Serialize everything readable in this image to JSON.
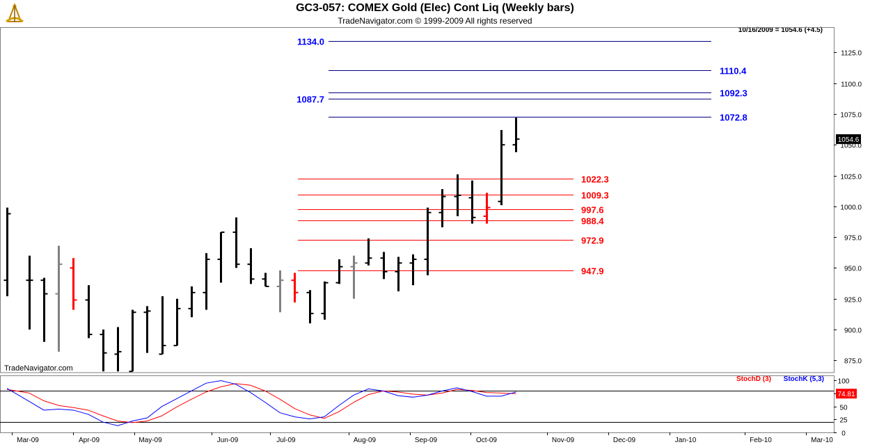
{
  "header": {
    "title": "GC3-057:  COMEX Gold (Elec) Cont Liq  (Weekly bars)",
    "copyright": "TradeNavigator.com © 1999-2009 All rights reserved",
    "last_value": "10/16/2009 = 1054.6 (+4.5)",
    "brand": "TradeNavigator.com"
  },
  "chart_data": [
    {
      "type": "bar",
      "subtype": "ohlc",
      "title": "GC3-057:  COMEX Gold (Elec) Cont Liq  (Weekly bars)",
      "ylim": [
        865,
        1145
      ],
      "y_ticks": [
        "875.0",
        "900.0",
        "925.0",
        "950.0",
        "975.0",
        "1000.0",
        "1025.0",
        "1050.0",
        "1075.0",
        "1100.0",
        "1125.0"
      ],
      "x_ticks": [
        "Mar-09",
        "Apr-09",
        "May-09",
        "Jun-09",
        "Jul-09",
        "Aug-09",
        "Sep-09",
        "Oct-09",
        "Nov-09",
        "Dec-09",
        "Jan-10",
        "Feb-10",
        "Mar-10"
      ],
      "last_price_label": "1054.6",
      "colors": {
        "up": "#000000",
        "down": "#ff0000",
        "neutral": "#808080",
        "blue_line": "#000080",
        "red_line": "#ff0000"
      },
      "bars": [
        {
          "w": 0,
          "o": 940,
          "h": 999,
          "l": 927,
          "c": 994,
          "color": "#000000"
        },
        {
          "w": 3,
          "o": 940,
          "h": 960,
          "l": 900,
          "c": 940,
          "color": "#000000"
        },
        {
          "w": 5,
          "o": 940,
          "h": 942,
          "l": 890,
          "c": 929,
          "color": "#000000"
        },
        {
          "w": 7,
          "o": 929,
          "h": 968,
          "l": 882,
          "c": 953,
          "color": "#808080"
        },
        {
          "w": 9,
          "o": 950,
          "h": 958,
          "l": 916,
          "c": 924,
          "color": "#ff0000"
        },
        {
          "w": 11,
          "o": 924,
          "h": 936,
          "l": 893,
          "c": 896,
          "color": "#000000"
        },
        {
          "w": 13,
          "o": 896,
          "h": 900,
          "l": 866,
          "c": 881,
          "color": "#000000"
        },
        {
          "w": 15,
          "o": 880,
          "h": 902,
          "l": 866,
          "c": 882,
          "color": "#000000"
        },
        {
          "w": 17,
          "o": 866,
          "h": 916,
          "l": 866,
          "c": 914,
          "color": "#000000"
        },
        {
          "w": 19,
          "o": 914,
          "h": 919,
          "l": 881,
          "c": 915,
          "color": "#000000"
        },
        {
          "w": 21,
          "o": 880,
          "h": 927,
          "l": 880,
          "c": 887,
          "color": "#000000"
        },
        {
          "w": 23,
          "o": 887,
          "h": 925,
          "l": 887,
          "c": 917,
          "color": "#000000"
        },
        {
          "w": 25,
          "o": 917,
          "h": 935,
          "l": 910,
          "c": 930,
          "color": "#000000"
        },
        {
          "w": 27,
          "o": 930,
          "h": 962,
          "l": 916,
          "c": 957,
          "color": "#000000"
        },
        {
          "w": 29,
          "o": 957,
          "h": 979,
          "l": 938,
          "c": 979,
          "color": "#000000"
        },
        {
          "w": 31,
          "o": 979,
          "h": 991,
          "l": 950,
          "c": 953,
          "color": "#000000"
        },
        {
          "w": 33,
          "o": 953,
          "h": 966,
          "l": 937,
          "c": 941,
          "color": "#000000"
        },
        {
          "w": 35,
          "o": 941,
          "h": 946,
          "l": 935,
          "c": 935,
          "color": "#000000"
        },
        {
          "w": 37,
          "o": 935,
          "h": 948,
          "l": 914,
          "c": 940,
          "color": "#808080"
        },
        {
          "w": 39,
          "o": 940,
          "h": 946,
          "l": 922,
          "c": 930,
          "color": "#ff0000"
        },
        {
          "w": 41,
          "o": 930,
          "h": 932,
          "l": 905,
          "c": 913,
          "color": "#000000"
        },
        {
          "w": 43,
          "o": 913,
          "h": 939,
          "l": 908,
          "c": 938,
          "color": "#000000"
        },
        {
          "w": 45,
          "o": 938,
          "h": 957,
          "l": 937,
          "c": 951,
          "color": "#000000"
        },
        {
          "w": 47,
          "o": 951,
          "h": 960,
          "l": 925,
          "c": 954,
          "color": "#808080"
        },
        {
          "w": 49,
          "o": 954,
          "h": 974,
          "l": 952,
          "c": 958,
          "color": "#000000"
        },
        {
          "w": 51,
          "o": 958,
          "h": 963,
          "l": 941,
          "c": 947,
          "color": "#000000"
        },
        {
          "w": 53,
          "o": 947,
          "h": 959,
          "l": 931,
          "c": 954,
          "color": "#000000"
        },
        {
          "w": 55,
          "o": 954,
          "h": 961,
          "l": 936,
          "c": 957,
          "color": "#000000"
        },
        {
          "w": 57,
          "o": 957,
          "h": 999,
          "l": 944,
          "c": 995,
          "color": "#000000"
        },
        {
          "w": 59,
          "o": 995,
          "h": 1014,
          "l": 983,
          "c": 1008,
          "color": "#000000"
        },
        {
          "w": 61,
          "o": 1008,
          "h": 1026,
          "l": 992,
          "c": 1009,
          "color": "#000000"
        },
        {
          "w": 63,
          "o": 1007,
          "h": 1021,
          "l": 986,
          "c": 991,
          "color": "#000000"
        },
        {
          "w": 65,
          "o": 992,
          "h": 1011,
          "l": 986,
          "c": 999,
          "color": "#ff0000"
        },
        {
          "w": 67,
          "o": 1004,
          "h": 1062,
          "l": 1001,
          "c": 1050,
          "color": "#000000"
        },
        {
          "w": 69,
          "o": 1050,
          "h": 1072,
          "l": 1044,
          "c": 1054.6,
          "color": "#000000"
        }
      ],
      "levels_blue": [
        {
          "label": "1134.0",
          "value": 1134.0
        },
        {
          "label": "1110.4",
          "value": 1110.4
        },
        {
          "label": "1092.3",
          "value": 1092.3
        },
        {
          "label": "1087.7",
          "value": 1087.7
        },
        {
          "label": "1072.8",
          "value": 1072.8
        }
      ],
      "levels_red": [
        {
          "label": "1022.3",
          "value": 1022.3
        },
        {
          "label": "1009.3",
          "value": 1009.3
        },
        {
          "label": "997.6",
          "value": 997.6
        },
        {
          "label": "988.4",
          "value": 988.4
        },
        {
          "label": "972.9",
          "value": 972.9
        },
        {
          "label": "947.9",
          "value": 947.9
        }
      ]
    },
    {
      "type": "line",
      "ylim": [
        0,
        110
      ],
      "y_ticks": [
        "0",
        "25",
        "50",
        "75",
        "100"
      ],
      "reference_lines": [
        20,
        80
      ],
      "last_value_label": "74.81",
      "series": [
        {
          "name": "StochD (3)",
          "color": "#ff0000",
          "values": [
            [
              0,
              83
            ],
            [
              3,
              76
            ],
            [
              5,
              61
            ],
            [
              7,
              52
            ],
            [
              9,
              48
            ],
            [
              11,
              43
            ],
            [
              13,
              32
            ],
            [
              15,
              22
            ],
            [
              17,
              19
            ],
            [
              19,
              22
            ],
            [
              21,
              32
            ],
            [
              23,
              49
            ],
            [
              25,
              64
            ],
            [
              27,
              78
            ],
            [
              29,
              88
            ],
            [
              31,
              94
            ],
            [
              33,
              91
            ],
            [
              35,
              80
            ],
            [
              37,
              64
            ],
            [
              39,
              46
            ],
            [
              41,
              34
            ],
            [
              43,
              27
            ],
            [
              45,
              40
            ],
            [
              47,
              58
            ],
            [
              49,
              73
            ],
            [
              51,
              80
            ],
            [
              53,
              78
            ],
            [
              55,
              74
            ],
            [
              57,
              72
            ],
            [
              59,
              76
            ],
            [
              61,
              83
            ],
            [
              63,
              81
            ],
            [
              65,
              77
            ],
            [
              67,
              76
            ],
            [
              69,
              74.81
            ]
          ]
        },
        {
          "name": "StochK (5,3)",
          "color": "#0000ff",
          "values": [
            [
              0,
              85
            ],
            [
              3,
              60
            ],
            [
              5,
              43
            ],
            [
              7,
              45
            ],
            [
              9,
              43
            ],
            [
              11,
              35
            ],
            [
              13,
              20
            ],
            [
              15,
              13
            ],
            [
              17,
              22
            ],
            [
              19,
              28
            ],
            [
              21,
              50
            ],
            [
              23,
              65
            ],
            [
              25,
              80
            ],
            [
              27,
              95
            ],
            [
              29,
              100
            ],
            [
              31,
              93
            ],
            [
              33,
              77
            ],
            [
              35,
              58
            ],
            [
              37,
              38
            ],
            [
              39,
              30
            ],
            [
              41,
              26
            ],
            [
              43,
              30
            ],
            [
              45,
              52
            ],
            [
              47,
              72
            ],
            [
              49,
              84
            ],
            [
              51,
              80
            ],
            [
              53,
              71
            ],
            [
              55,
              68
            ],
            [
              57,
              72
            ],
            [
              59,
              80
            ],
            [
              61,
              86
            ],
            [
              63,
              79
            ],
            [
              65,
              70
            ],
            [
              67,
              70
            ],
            [
              69,
              78
            ]
          ]
        }
      ]
    }
  ]
}
